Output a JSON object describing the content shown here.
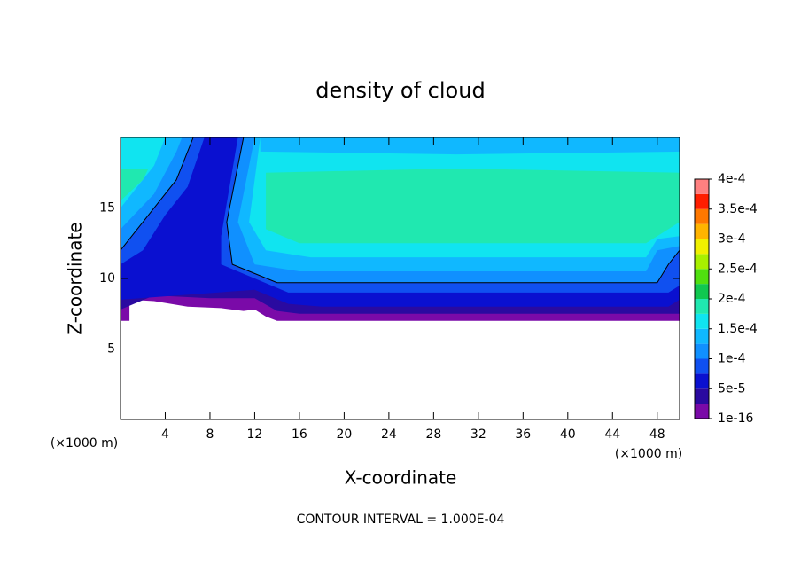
{
  "chart_data": {
    "type": "contour",
    "title": "density of cloud",
    "x_label": "X-coordinate",
    "y_label": "Z-coordinate",
    "x_unit": "(×1000 m)",
    "y_unit": "(×1000 m)",
    "note": "CONTOUR INTERVAL = 1.000E-04",
    "xlim": [
      0,
      50
    ],
    "ylim": [
      0,
      20
    ],
    "xticks": [
      4,
      8,
      12,
      16,
      20,
      24,
      28,
      32,
      36,
      40,
      44,
      48
    ],
    "yticks": [
      5,
      10,
      15
    ],
    "colorbar": {
      "lim": [
        1e-16,
        0.0004
      ],
      "colors": [
        "#7a0aa8",
        "#2a0aa0",
        "#0a10d0",
        "#1050f0",
        "#1090ff",
        "#10b8ff",
        "#10e4f0",
        "#20e8b0",
        "#10c850",
        "#50e010",
        "#a8f000",
        "#f0f000",
        "#ffb400",
        "#ff7800",
        "#ff1e00",
        "#ff8080"
      ],
      "ticks": [
        {
          "value": 1e-16,
          "label": "1e-16"
        },
        {
          "value": 5e-05,
          "label": "5e-5"
        },
        {
          "value": 0.0001,
          "label": "1e-4"
        },
        {
          "value": 0.00015,
          "label": "1.5e-4"
        },
        {
          "value": 0.0002,
          "label": "2e-4"
        },
        {
          "value": 0.00025,
          "label": "2.5e-4"
        },
        {
          "value": 0.0003,
          "label": "3e-4"
        },
        {
          "value": 0.00035,
          "label": "3.5e-4"
        },
        {
          "value": 0.0004,
          "label": "4e-4"
        }
      ]
    },
    "contour_band": 4,
    "regions": [
      {
        "band": 0,
        "points": [
          [
            0,
            7.0
          ],
          [
            0.8,
            7.0
          ],
          [
            0.8,
            8.5
          ],
          [
            3,
            8.4
          ],
          [
            6,
            8.0
          ],
          [
            9,
            7.9
          ],
          [
            11,
            7.7
          ],
          [
            12,
            7.8
          ],
          [
            13,
            7.3
          ],
          [
            14,
            7.0
          ],
          [
            50,
            7.0
          ],
          [
            50,
            20
          ],
          [
            0,
            20
          ]
        ]
      },
      {
        "band": 1,
        "points": [
          [
            0,
            7.8
          ],
          [
            3,
            8.8
          ],
          [
            8,
            8.6
          ],
          [
            12,
            8.6
          ],
          [
            14,
            7.7
          ],
          [
            16,
            7.5
          ],
          [
            50,
            7.5
          ],
          [
            50,
            20
          ],
          [
            0,
            20
          ]
        ]
      },
      {
        "band": 2,
        "points": [
          [
            0,
            8.5
          ],
          [
            12,
            9.2
          ],
          [
            15,
            8.2
          ],
          [
            18,
            8.0
          ],
          [
            49,
            8.0
          ],
          [
            50,
            8.5
          ],
          [
            50,
            20
          ],
          [
            0,
            20
          ]
        ]
      },
      {
        "band": 3,
        "points": [
          [
            0,
            11
          ],
          [
            2,
            12
          ],
          [
            4,
            14.5
          ],
          [
            6,
            16.5
          ],
          [
            7.5,
            20
          ],
          [
            0,
            20
          ]
        ]
      },
      {
        "band": 3,
        "points": [
          [
            10.5,
            20
          ],
          [
            9,
            13
          ],
          [
            9,
            11
          ],
          [
            12,
            10
          ],
          [
            15,
            9.0
          ],
          [
            49,
            9.0
          ],
          [
            50,
            9.5
          ],
          [
            50,
            20
          ]
        ]
      },
      {
        "band": 4,
        "points": [
          [
            0,
            12
          ],
          [
            2,
            14
          ],
          [
            5,
            17
          ],
          [
            6.5,
            20
          ],
          [
            0,
            20
          ]
        ]
      },
      {
        "band": 4,
        "points": [
          [
            11,
            20
          ],
          [
            9.5,
            14
          ],
          [
            10,
            11
          ],
          [
            14,
            9.7
          ],
          [
            48,
            9.7
          ],
          [
            49,
            11
          ],
          [
            50,
            12
          ],
          [
            50,
            20
          ]
        ]
      },
      {
        "band": 5,
        "points": [
          [
            0,
            13.5
          ],
          [
            3,
            16
          ],
          [
            5,
            19
          ],
          [
            5.5,
            20
          ],
          [
            0,
            20
          ]
        ]
      },
      {
        "band": 5,
        "points": [
          [
            12,
            20
          ],
          [
            10.5,
            14
          ],
          [
            12,
            11
          ],
          [
            16,
            10.5
          ],
          [
            47,
            10.5
          ],
          [
            48,
            12
          ],
          [
            50,
            12.3
          ],
          [
            50,
            20
          ]
        ]
      },
      {
        "band": 6,
        "points": [
          [
            0,
            15
          ],
          [
            3,
            18
          ],
          [
            4,
            20
          ],
          [
            0,
            20
          ]
        ]
      },
      {
        "band": 6,
        "points": [
          [
            12.5,
            20
          ],
          [
            11.5,
            14
          ],
          [
            13,
            12
          ],
          [
            17,
            11.5
          ],
          [
            47,
            11.5
          ],
          [
            48,
            12.8
          ],
          [
            50,
            13
          ],
          [
            50,
            20
          ]
        ]
      },
      {
        "band": 7,
        "points": [
          [
            0,
            15.5
          ],
          [
            2,
            17
          ],
          [
            2.5,
            17.8
          ],
          [
            0,
            17.8
          ]
        ]
      },
      {
        "band": 7,
        "points": [
          [
            13,
            17.5
          ],
          [
            13,
            13.5
          ],
          [
            16,
            12.5
          ],
          [
            47,
            12.5
          ],
          [
            50,
            14
          ],
          [
            50,
            17.5
          ],
          [
            30,
            17.8
          ]
        ]
      },
      {
        "band": 5,
        "points": [
          [
            12.5,
            20
          ],
          [
            12.5,
            19
          ],
          [
            30,
            18.8
          ],
          [
            50,
            19
          ],
          [
            50,
            20
          ]
        ]
      }
    ]
  }
}
